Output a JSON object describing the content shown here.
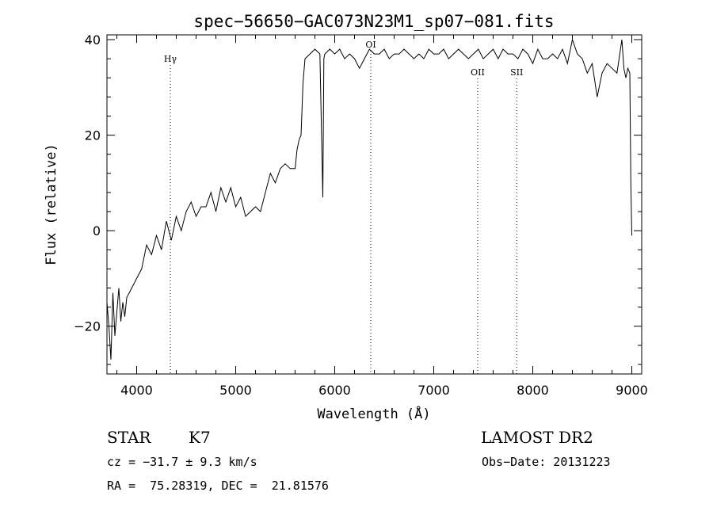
{
  "chart_data": {
    "type": "line",
    "title": "spec−56650−GAC073N23M1_sp07−081.fits",
    "xlabel": "Wavelength (Å)",
    "ylabel": "Flux (relative)",
    "xlim": [
      3700,
      9100
    ],
    "ylim": [
      -30,
      41
    ],
    "xticks": [
      4000,
      5000,
      6000,
      7000,
      8000,
      9000
    ],
    "yticks": [
      -20,
      0,
      20,
      40
    ],
    "grid": false,
    "series": [
      {
        "x": [
          3700,
          3720,
          3740,
          3760,
          3780,
          3800,
          3820,
          3840,
          3860,
          3880,
          3900,
          3950,
          4000,
          4050,
          4100,
          4150,
          4200,
          4250,
          4300,
          4350,
          4400,
          4450,
          4500,
          4550,
          4600,
          4650,
          4700,
          4750,
          4800,
          4850,
          4900,
          4950,
          5000,
          5050,
          5100,
          5150,
          5200,
          5250,
          5300,
          5350,
          5400,
          5450,
          5500,
          5550,
          5600,
          5620,
          5640,
          5660,
          5680,
          5700,
          5750,
          5800,
          5850,
          5880,
          5890,
          5900,
          5950,
          6000,
          6050,
          6100,
          6150,
          6200,
          6250,
          6300,
          6350,
          6400,
          6450,
          6500,
          6550,
          6600,
          6650,
          6700,
          6750,
          6800,
          6850,
          6900,
          6950,
          7000,
          7050,
          7100,
          7150,
          7200,
          7250,
          7300,
          7350,
          7400,
          7450,
          7500,
          7550,
          7600,
          7650,
          7700,
          7750,
          7800,
          7850,
          7900,
          7950,
          8000,
          8050,
          8100,
          8150,
          8200,
          8250,
          8300,
          8350,
          8400,
          8450,
          8500,
          8550,
          8600,
          8650,
          8700,
          8750,
          8800,
          8850,
          8900,
          8920,
          8940,
          8960,
          8980,
          8990,
          9000
        ],
        "y": [
          -15,
          -20,
          -27,
          -13,
          -22,
          -17,
          -12,
          -19,
          -15,
          -18,
          -14,
          -12,
          -10,
          -8,
          -3,
          -5,
          -1,
          -4,
          2,
          -2,
          3,
          0,
          4,
          6,
          3,
          5,
          5,
          8,
          4,
          9,
          6,
          9,
          5,
          7,
          3,
          4,
          5,
          4,
          8,
          12,
          10,
          13,
          14,
          13,
          13,
          17,
          19,
          20,
          31,
          36,
          37,
          38,
          37,
          7,
          36,
          37,
          38,
          37,
          38,
          36,
          37,
          36,
          34,
          36,
          38,
          37,
          37,
          38,
          36,
          37,
          37,
          38,
          37,
          36,
          37,
          36,
          38,
          37,
          37,
          38,
          36,
          37,
          38,
          37,
          36,
          37,
          38,
          36,
          37,
          38,
          36,
          38,
          37,
          37,
          36,
          38,
          37,
          35,
          38,
          36,
          36,
          37,
          36,
          38,
          35,
          40,
          37,
          36,
          33,
          35,
          28,
          33,
          35,
          34,
          33,
          40,
          34,
          32,
          34,
          33,
          10,
          -1
        ],
        "color": "#000000"
      }
    ],
    "line_labels": [
      {
        "label": "Hγ",
        "x": 4340
      },
      {
        "label": "OI",
        "x": 6364
      },
      {
        "label": "OII",
        "x": 7444
      },
      {
        "label": "SII",
        "x": 7838
      }
    ]
  },
  "footer": {
    "class_label": "STAR",
    "subclass": "K7",
    "cz": "cz = −31.7 ± 9.3 km/s",
    "coords": "RA =  75.28319, DEC =  21.81576",
    "survey": "LAMOST DR2",
    "obs_date": "Obs−Date: 20131223"
  }
}
